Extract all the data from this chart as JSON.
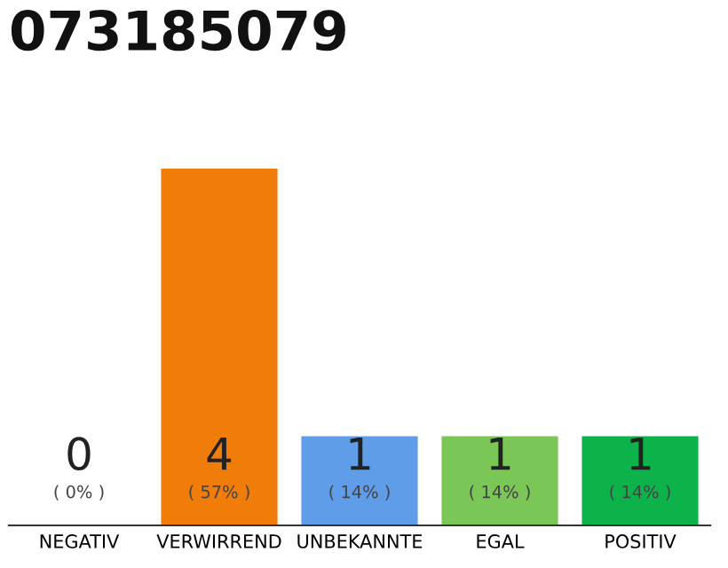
{
  "chart_data": {
    "type": "bar",
    "title": "073185079",
    "categories": [
      "NEGATIV",
      "VERWIRREND",
      "UNBEKANNTE",
      "EGAL",
      "POSITIV"
    ],
    "values": [
      0,
      4,
      1,
      1,
      1
    ],
    "colors": [
      "#eeeeee",
      "#f07d0a",
      "#5f9de8",
      "#7ac656",
      "#0db34a"
    ],
    "tick_labels": "x",
    "value_labels": [
      "0\n( 0% )",
      "4\n( 57% )",
      "1\n( 14% )",
      "1\n( 14% )",
      "1\n( 14% )"
    ]
  }
}
